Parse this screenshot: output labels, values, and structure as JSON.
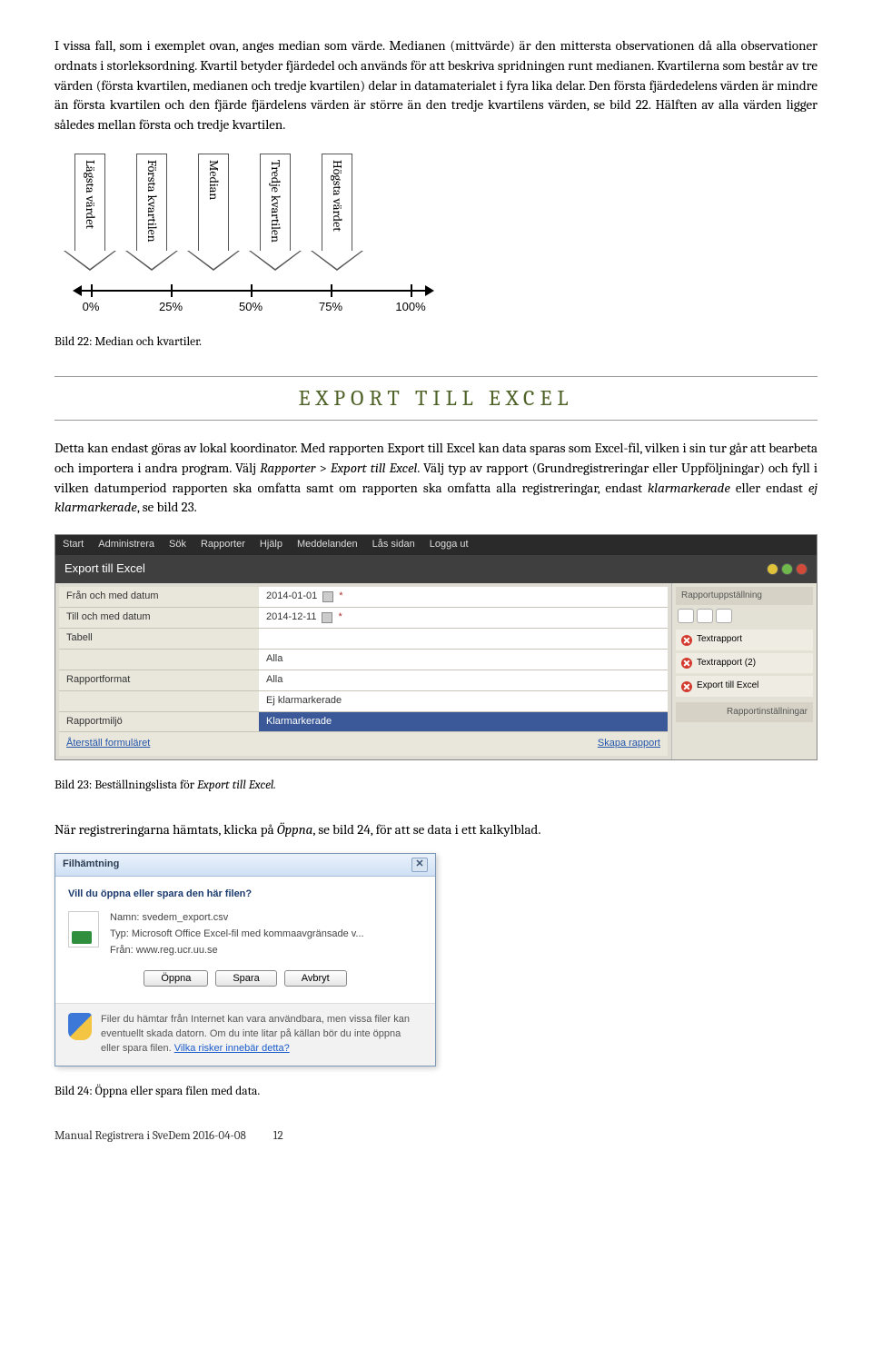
{
  "intro": {
    "text": "I vissa fall, som i exemplet ovan, anges median som värde. Medianen (mittvärde) är den mittersta observationen då alla observationer ordnats i storleksordning. Kvartil betyder fjärdedel och används för att beskriva spridningen runt medianen. Kvartilerna som består av tre värden (första kvartilen, medianen och tredje kvartilen) delar in datamaterialet i fyra lika delar. Den första fjärdedelens värden är mindre än första kvartilen och den fjärde fjärdelens värden är större än den tredje kvartilens värden, se bild 22. Hälften av alla värden ligger således mellan första och tredje kvartilen."
  },
  "diagram": {
    "arrows": [
      {
        "label": "Lägsta värdet",
        "tick": "0%",
        "tick_pos": 40
      },
      {
        "label": "Första kvartilen",
        "tick": "25%",
        "tick_pos": 128
      },
      {
        "label": "Median",
        "tick": "50%",
        "tick_pos": 216
      },
      {
        "label": "Tredje kvartilen",
        "tick": "75%",
        "tick_pos": 304
      },
      {
        "label": "Högsta värdet",
        "tick": "100%",
        "tick_pos": 392
      }
    ]
  },
  "caption1": "Bild 22: Median och kvartiler.",
  "section_title": "EXPORT TILL EXCEL",
  "body2_parts": {
    "p1": "Detta kan endast göras av lokal koordinator. Med rapporten Export till Excel kan data sparas som Excel-fil, vilken i sin tur går att bearbeta och importera i andra program. Välj ",
    "p2": "Rapporter",
    "p3": " > ",
    "p4": "Export till Excel",
    "p5": ". Välj typ av rapport (Grundregistreringar eller Uppföljningar) och fyll i vilken datumperiod rapporten ska omfatta samt om rapporten ska omfatta alla registreringar, endast ",
    "p6": "klarmarkerade",
    "p7": " eller endast ",
    "p8": "ej klarmarkerade",
    "p9": ", se bild 23."
  },
  "screenshot1": {
    "menubar": [
      "Start",
      "Administrera",
      "Sök",
      "Rapporter",
      "Hjälp",
      "Meddelanden",
      "Lås sidan",
      "Logga ut"
    ],
    "header": "Export till Excel",
    "circle_colors": [
      "#e0c23a",
      "#6fb84c",
      "#d24a3a"
    ],
    "rows": [
      {
        "label": "Från och med datum",
        "value": "2014-01-01",
        "cal": true
      },
      {
        "label": "Till och med datum",
        "value": "2014-12-11",
        "cal": true
      },
      {
        "label": "Tabell",
        "value": ""
      },
      {
        "label": "",
        "value": "Alla",
        "highlighted": false
      },
      {
        "label": "Rapportformat",
        "value": "Alla"
      },
      {
        "label": "",
        "value": "Ej klarmarkerade"
      },
      {
        "label": "Rapportmiljö",
        "value": "Klarmarkerade",
        "sel": true
      }
    ],
    "footer_left": "Återställ formuläret",
    "footer_right": "Skapa rapport",
    "side_head": "Rapportuppställning",
    "side_items": [
      "Textrapport",
      "Textrapport (2)",
      "Export till Excel"
    ],
    "side_foot": "Rapportinställningar"
  },
  "caption2_pre": "Bild 23: Beställningslista för ",
  "caption2_em": "Export till Excel.",
  "body3_pre": "När registreringarna hämtats, klicka på ",
  "body3_em": "Öppna",
  "body3_post": ", se bild 24, för att se data i ett kalkylblad.",
  "dialog": {
    "title": "Filhämtning",
    "question": "Vill du öppna eller spara den här filen?",
    "meta_name_l": "Namn:",
    "meta_name_v": "svedem_export.csv",
    "meta_type_l": "Typ:",
    "meta_type_v": "Microsoft Office Excel-fil med kommaavgränsade v...",
    "meta_from_l": "Från:",
    "meta_from_v": "www.reg.ucr.uu.se",
    "btn_open": "Öppna",
    "btn_save": "Spara",
    "btn_cancel": "Avbryt",
    "warn1": "Filer du hämtar från Internet kan vara användbara, men vissa filer kan eventuellt skada datorn. Om du inte litar på källan bör du inte öppna eller spara filen. ",
    "warn_link": "Vilka risker innebär detta?"
  },
  "caption3": "Bild 24: Öppna eller spara filen med data.",
  "footer": {
    "left": "Manual Registrera i SveDem   2016-04-08",
    "page": "12"
  }
}
